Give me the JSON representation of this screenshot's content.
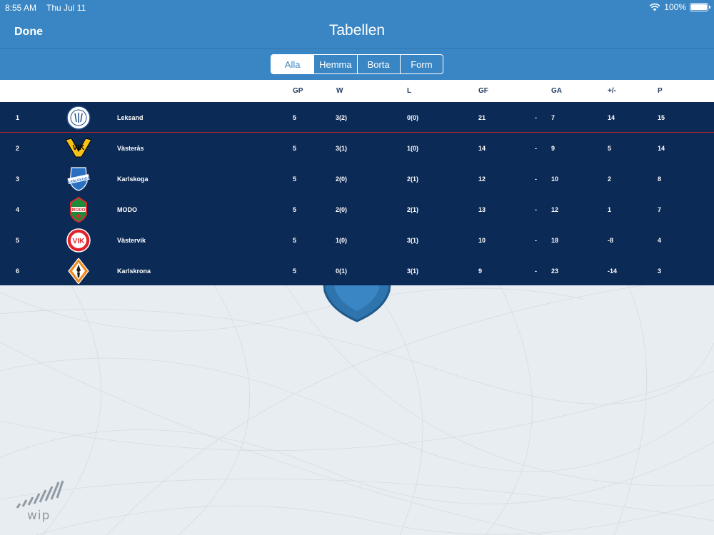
{
  "status_bar": {
    "time": "8:55 AM",
    "date": "Thu Jul 11",
    "battery": "100%"
  },
  "nav": {
    "done_label": "Done",
    "title": "Tabellen"
  },
  "segments": [
    {
      "label": "Alla",
      "active": true
    },
    {
      "label": "Hemma",
      "active": false
    },
    {
      "label": "Borta",
      "active": false
    },
    {
      "label": "Form",
      "active": false
    }
  ],
  "table": {
    "headers": {
      "gp": "GP",
      "w": "W",
      "l": "L",
      "gf": "GF",
      "ga": "GA",
      "diff": "+/-",
      "p": "P"
    },
    "separator": "-",
    "rows": [
      {
        "rank": "1",
        "team": "Leksand",
        "gp": "5",
        "w": "3(2)",
        "l": "0(0)",
        "gf": "21",
        "ga": "7",
        "diff": "14",
        "p": "15",
        "logo": "leksand-logo"
      },
      {
        "rank": "2",
        "team": "Västerås",
        "gp": "5",
        "w": "3(1)",
        "l": "1(0)",
        "gf": "14",
        "ga": "9",
        "diff": "5",
        "p": "14",
        "logo": "vasteras-logo"
      },
      {
        "rank": "3",
        "team": "Karlskoga",
        "gp": "5",
        "w": "2(0)",
        "l": "2(1)",
        "gf": "12",
        "ga": "10",
        "diff": "2",
        "p": "8",
        "logo": "karlskoga-logo"
      },
      {
        "rank": "4",
        "team": "MODO",
        "gp": "5",
        "w": "2(0)",
        "l": "2(1)",
        "gf": "13",
        "ga": "12",
        "diff": "1",
        "p": "7",
        "logo": "modo-logo"
      },
      {
        "rank": "5",
        "team": "Västervik",
        "gp": "5",
        "w": "1(0)",
        "l": "3(1)",
        "gf": "10",
        "ga": "18",
        "diff": "-8",
        "p": "4",
        "logo": "vastervik-logo"
      },
      {
        "rank": "6",
        "team": "Karlskrona",
        "gp": "5",
        "w": "0(1)",
        "l": "3(1)",
        "gf": "9",
        "ga": "23",
        "diff": "-14",
        "p": "3",
        "logo": "karlskrona-logo"
      }
    ]
  },
  "watermark": {
    "text": "wip"
  },
  "colors": {
    "header_blue": "#3a86c4",
    "table_navy": "#0c2a56",
    "leader_line": "#c0202a"
  }
}
